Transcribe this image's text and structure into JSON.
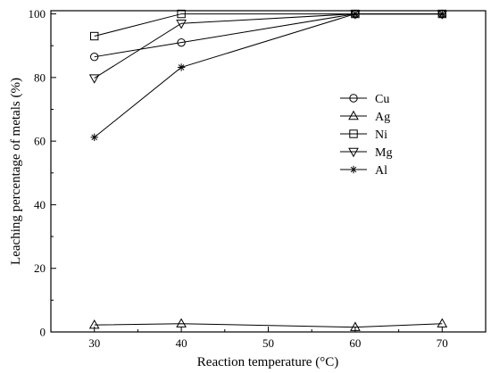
{
  "chart_data": {
    "type": "line",
    "xlabel": "Reaction temperature (°C)",
    "ylabel": "Leaching percentage of metals (%)",
    "x": [
      30,
      40,
      60,
      70
    ],
    "xlim": [
      25,
      75
    ],
    "ylim": [
      0,
      101
    ],
    "x_ticks": [
      30,
      40,
      50,
      60,
      70
    ],
    "y_ticks": [
      0,
      20,
      40,
      60,
      80,
      100
    ],
    "grid": false,
    "legend_position": "right, upper-middle",
    "series": [
      {
        "name": "Cu",
        "marker": "circle",
        "values": [
          86.5,
          91,
          100,
          100
        ]
      },
      {
        "name": "Ag",
        "marker": "triangle-up",
        "values": [
          2.2,
          2.6,
          1.5,
          2.6
        ]
      },
      {
        "name": "Ni",
        "marker": "square",
        "values": [
          93,
          100,
          100,
          100
        ]
      },
      {
        "name": "Mg",
        "marker": "triangle-down",
        "values": [
          79.8,
          97,
          100,
          100
        ]
      },
      {
        "name": "Al",
        "marker": "asterisk",
        "values": [
          61.2,
          83.2,
          100,
          100
        ]
      }
    ]
  }
}
